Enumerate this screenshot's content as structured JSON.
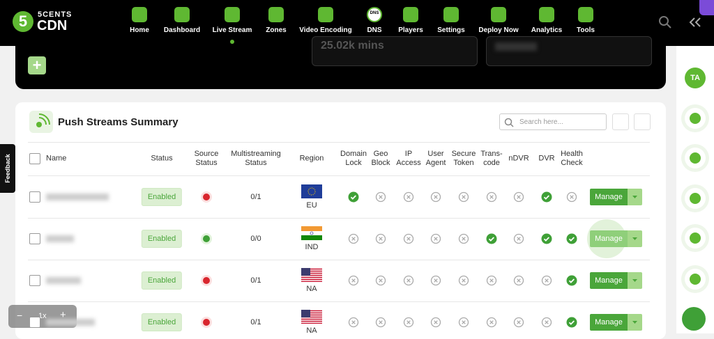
{
  "logo": {
    "digit": "5",
    "line1": "5CENTS",
    "line2": "CDN"
  },
  "nav": [
    {
      "label": "Home"
    },
    {
      "label": "Dashboard"
    },
    {
      "label": "Live Stream",
      "active": true
    },
    {
      "label": "Zones"
    },
    {
      "label": "Video Encoding"
    },
    {
      "label": "DNS",
      "icon_text": "DNS"
    },
    {
      "label": "Players"
    },
    {
      "label": "Settings"
    },
    {
      "label": "Deploy Now"
    },
    {
      "label": "Analytics"
    },
    {
      "label": "Tools"
    }
  ],
  "stats": [
    "25.02k mins"
  ],
  "panel": {
    "title": "Push Streams Summary",
    "search_placeholder": "Search here...",
    "columns": [
      "Name",
      "Status",
      "Source Status",
      "Multistreaming Status",
      "Region",
      "Domain Lock",
      "Geo Block",
      "IP Access",
      "User Agent",
      "Secure Token",
      "Trans-code",
      "nDVR",
      "DVR",
      "Health Check"
    ],
    "rows": [
      {
        "status": "Enabled",
        "source_up": false,
        "multistreaming": "0/1",
        "region": "EU",
        "features": [
          true,
          false,
          false,
          false,
          false,
          false,
          false,
          true,
          false
        ],
        "action": "Manage"
      },
      {
        "status": "Enabled",
        "source_up": true,
        "multistreaming": "0/0",
        "region": "IND",
        "features": [
          false,
          false,
          false,
          false,
          false,
          true,
          false,
          true,
          true
        ],
        "action": "Manage"
      },
      {
        "status": "Enabled",
        "source_up": false,
        "multistreaming": "0/1",
        "region": "NA",
        "features": [
          false,
          false,
          false,
          false,
          false,
          false,
          false,
          false,
          true
        ],
        "action": "Manage"
      },
      {
        "status": "Enabled",
        "source_up": false,
        "multistreaming": "0/1",
        "region": "NA",
        "features": [
          false,
          false,
          false,
          false,
          false,
          false,
          false,
          false,
          true
        ],
        "action": "Manage"
      }
    ]
  },
  "feedback": "Feedback",
  "zoom": "1x",
  "sidebar": {
    "avatar": "TA"
  }
}
